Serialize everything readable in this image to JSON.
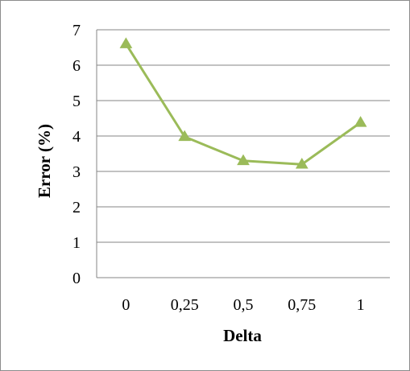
{
  "chart_data": {
    "type": "line",
    "title": "",
    "xlabel": "Delta",
    "ylabel": "Error (%)",
    "categories": [
      "0",
      "0,25",
      "0,5",
      "0,75",
      "1"
    ],
    "series": [
      {
        "values": [
          6.6,
          3.98,
          3.3,
          3.2,
          4.38
        ],
        "color": "#9bbb59",
        "marker": "triangle"
      }
    ],
    "ylim": [
      0,
      7
    ],
    "yticks": [
      "0",
      "1",
      "2",
      "3",
      "4",
      "5",
      "6",
      "7"
    ],
    "grid": true,
    "legend": "none",
    "colors": {
      "series": "#9bbb59",
      "grid": "#868686",
      "axis": "#868686",
      "frame": "#8c8c8c"
    }
  }
}
